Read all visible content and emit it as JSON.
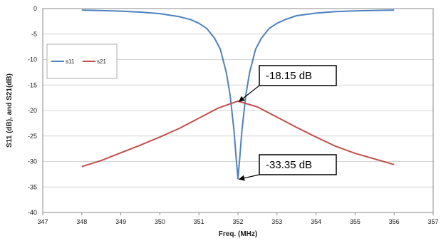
{
  "chart_data": {
    "type": "line",
    "title": "",
    "xlabel": "Freq. (MHz)",
    "ylabel": "S11 (dB), and S21(dB)",
    "xlim": [
      347,
      357
    ],
    "ylim": [
      -40,
      0
    ],
    "xticks": [
      347,
      348,
      349,
      350,
      351,
      352,
      353,
      354,
      355,
      356,
      357
    ],
    "yticks": [
      0,
      -5,
      -10,
      -15,
      -20,
      -25,
      -30,
      -35,
      -40
    ],
    "grid": "horizontal",
    "legend_position": "left",
    "series": [
      {
        "name": "s11",
        "color": "#4f81bd",
        "x": [
          348,
          349,
          349.5,
          350,
          350.5,
          350.8,
          351,
          351.2,
          351.4,
          351.55,
          351.7,
          351.8,
          351.9,
          351.95,
          352,
          352.05,
          352.1,
          352.2,
          352.3,
          352.45,
          352.6,
          352.8,
          353,
          353.2,
          353.5,
          354,
          354.5,
          355,
          356
        ],
        "y": [
          -0.3,
          -0.5,
          -0.7,
          -1.0,
          -1.6,
          -2.2,
          -2.9,
          -3.9,
          -5.8,
          -8.0,
          -12.5,
          -17.0,
          -24.0,
          -29.0,
          -33.35,
          -29.0,
          -24.0,
          -17.0,
          -12.5,
          -8.0,
          -5.8,
          -3.9,
          -2.9,
          -2.2,
          -1.4,
          -0.9,
          -0.6,
          -0.45,
          -0.3
        ]
      },
      {
        "name": "s21",
        "color": "#c0504d",
        "x": [
          348,
          348.5,
          349,
          349.5,
          350,
          350.5,
          351,
          351.5,
          352,
          352.5,
          353,
          353.5,
          354,
          354.5,
          355,
          355.5,
          356
        ],
        "y": [
          -31.0,
          -29.8,
          -28.3,
          -26.8,
          -25.2,
          -23.5,
          -21.5,
          -19.5,
          -18.15,
          -19.3,
          -21.3,
          -23.3,
          -25.2,
          -27.0,
          -28.4,
          -29.5,
          -30.6
        ]
      }
    ],
    "annotations": [
      {
        "text": "-18.15 dB",
        "x": 352,
        "y": -18.15
      },
      {
        "text": "-33.35 dB",
        "x": 352,
        "y": -33.35
      }
    ]
  }
}
